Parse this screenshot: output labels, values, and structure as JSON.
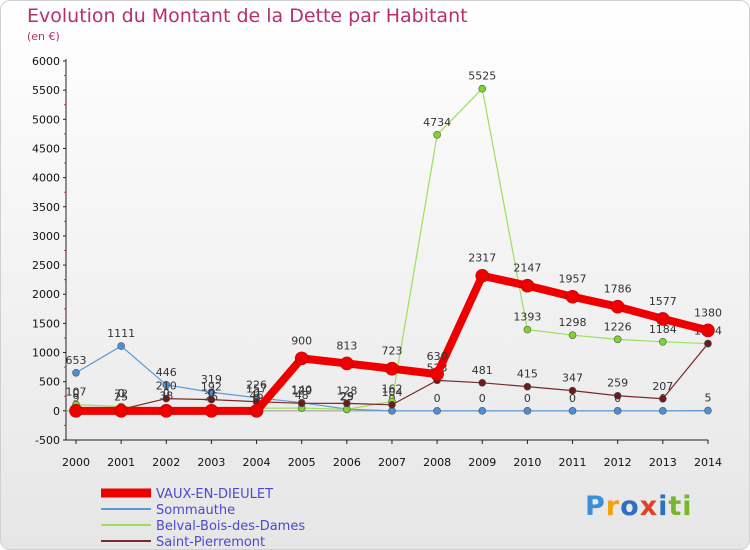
{
  "header": {
    "title": "Evolution du Montant de la Dette par Habitant",
    "subtitle": "(en €)"
  },
  "brand": {
    "logo_text": "Proxiti",
    "logo_colors": [
      "#3b8fd6",
      "#f2a20c",
      "#2f6fc0",
      "#e0412a",
      "#76b82a"
    ]
  },
  "chart_data": {
    "type": "line",
    "title": "Evolution du Montant de la Dette par Habitant",
    "subtitle": "(en €)",
    "x": [
      "2000",
      "2001",
      "2002",
      "2003",
      "2004",
      "2005",
      "2006",
      "2007",
      "2008",
      "2009",
      "2010",
      "2011",
      "2012",
      "2013",
      "2014"
    ],
    "ylim": [
      -500,
      6000
    ],
    "yticks": [
      "-500",
      "0",
      "500",
      "1000",
      "1500",
      "2000",
      "2500",
      "3000",
      "3500",
      "4000",
      "4500",
      "5000",
      "5500",
      "6000"
    ],
    "grid": false,
    "legend_position": "bottom-left",
    "series": [
      {
        "name": "VAUX-EN-DIEULET",
        "color": "#ee0000",
        "marker_color": "#ee0000",
        "width": 8,
        "values": [
          0,
          0,
          0,
          0,
          0,
          900,
          813,
          723,
          630,
          2317,
          2147,
          1957,
          1786,
          1577,
          1380
        ],
        "labels": [
          "0",
          "0",
          "0",
          "0",
          "0",
          "900",
          "813",
          "723",
          "630",
          "2317",
          "2147",
          "1957",
          "1786",
          "1577",
          "1380"
        ]
      },
      {
        "name": "Sommauthe",
        "color": "#5b9bd5",
        "marker_color": "#4a8fd8",
        "width": 1.2,
        "values": [
          653,
          1111,
          446,
          319,
          226,
          140,
          29,
          0,
          0,
          0,
          0,
          0,
          0,
          0,
          5
        ],
        "labels": [
          "653",
          "1111",
          "446",
          "319",
          "226",
          "140",
          "29",
          "0",
          "0",
          "0",
          "0",
          "0",
          "0",
          "0",
          "5"
        ]
      },
      {
        "name": "Belval-Bois-des-Dames",
        "color": "#9be05a",
        "marker_color": "#7ed32e",
        "width": 1.2,
        "values": [
          107,
          72,
          38,
          25,
          46,
          48,
          25,
          162,
          4734,
          5525,
          1393,
          1298,
          1226,
          1184,
          1154
        ],
        "labels": [
          "107",
          "72",
          "38",
          "25",
          "46",
          "48",
          "25",
          "162",
          "4734",
          "5525",
          "1393",
          "1298",
          "1226",
          "1184",
          "1154"
        ]
      },
      {
        "name": "Saint-Pierremont",
        "color": "#7a2a2a",
        "marker_color": "#6a1c1c",
        "width": 1.2,
        "values": [
          9,
          25,
          210,
          192,
          157,
          129,
          128,
          104,
          523,
          481,
          415,
          347,
          259,
          207,
          1154
        ],
        "labels": [
          "9",
          "25",
          "210",
          "192",
          "157",
          "129",
          "128",
          "104",
          "523",
          "481",
          "415",
          "347",
          "259",
          "207",
          ""
        ]
      }
    ]
  }
}
